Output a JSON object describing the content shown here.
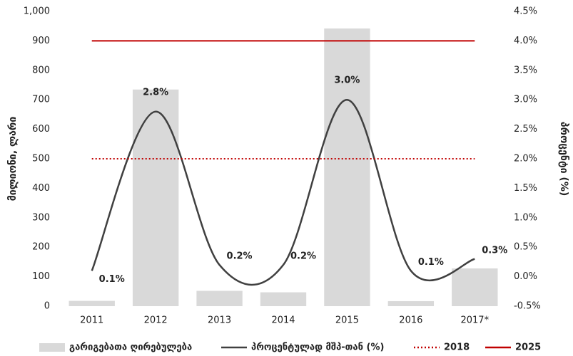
{
  "chart_data": {
    "type": "bar",
    "categories": [
      "2011",
      "2012",
      "2013",
      "2014",
      "2015",
      "2016",
      "2017*"
    ],
    "ylabel": "მილიონი, ლარი",
    "y2label": "პროცენტი (%)",
    "ylim": [
      0,
      1000
    ],
    "yticks": [
      0,
      100,
      200,
      300,
      400,
      500,
      600,
      700,
      800,
      900,
      {
        "value": 1000,
        "label": "1,000"
      }
    ],
    "y2lim": [
      -0.5,
      4.5
    ],
    "y2ticks": [
      {
        "value": -0.5,
        "label": "-0.5%"
      },
      {
        "value": 0,
        "label": "0.0%"
      },
      {
        "value": 0.5,
        "label": "0.5%"
      },
      {
        "value": 1,
        "label": "1.0%"
      },
      {
        "value": 1.5,
        "label": "1.5%"
      },
      {
        "value": 2,
        "label": "2.0%"
      },
      {
        "value": 2.5,
        "label": "2.5%"
      },
      {
        "value": 3,
        "label": "3.0%"
      },
      {
        "value": 3.5,
        "label": "3.5%"
      },
      {
        "value": 4,
        "label": "4.0%"
      },
      {
        "value": 4.5,
        "label": "4.5%"
      }
    ],
    "series": [
      {
        "name": "გარიგებათა ღირებულება",
        "kind": "bar",
        "color": "#d9d9d9",
        "values": [
          18,
          735,
          52,
          47,
          942,
          17,
          128
        ]
      },
      {
        "name": "პროცენტულად მშპ-თან (%)",
        "kind": "line",
        "axis": "y2",
        "smooth": true,
        "color": "#404040",
        "values": [
          0.1,
          2.8,
          0.2,
          0.2,
          3.0,
          0.1,
          0.3
        ],
        "value_labels": [
          "0.1%",
          "2.8%",
          "0.2%",
          "0.2%",
          "3.0%",
          "0.1%",
          "0.3%"
        ]
      },
      {
        "name": "2018",
        "kind": "line",
        "axis": "y2",
        "dash": "dotted",
        "color": "#c00000",
        "values": [
          2,
          2,
          2,
          2,
          2,
          2,
          2
        ]
      },
      {
        "name": "2025",
        "kind": "line",
        "axis": "y2",
        "color": "#c00000",
        "values": [
          4,
          4,
          4,
          4,
          4,
          4,
          4
        ]
      }
    ]
  }
}
